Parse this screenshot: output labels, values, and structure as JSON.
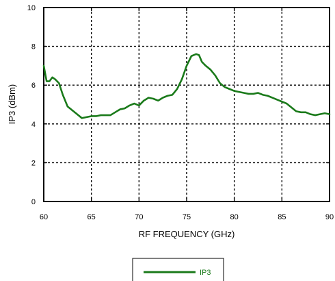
{
  "chart_data": {
    "type": "line",
    "xlabel": "RF FREQUENCY (GHz)",
    "ylabel": "IP3 (dBm)",
    "xlim": [
      60,
      90
    ],
    "ylim": [
      0,
      10
    ],
    "x_ticks": [
      "60",
      "65",
      "70",
      "75",
      "80",
      "85",
      "90"
    ],
    "y_ticks": [
      "0",
      "2",
      "4",
      "6",
      "8",
      "10"
    ],
    "grid": true,
    "legend_position": "bottom-center",
    "series": [
      {
        "name": "IP3",
        "color": "#1a7a1a",
        "x": [
          60.0,
          60.3,
          60.6,
          60.9,
          61.2,
          61.6,
          62.0,
          62.5,
          63.0,
          63.5,
          64.0,
          64.5,
          65.0,
          65.5,
          66.0,
          66.5,
          67.0,
          67.5,
          68.0,
          68.5,
          69.0,
          69.5,
          70.0,
          70.5,
          71.0,
          71.5,
          72.0,
          72.5,
          73.0,
          73.5,
          74.0,
          74.5,
          75.0,
          75.5,
          76.0,
          76.3,
          76.6,
          77.0,
          77.5,
          78.0,
          78.5,
          79.0,
          79.5,
          80.0,
          80.5,
          81.0,
          81.5,
          82.0,
          82.5,
          83.0,
          83.5,
          84.0,
          84.5,
          85.0,
          85.5,
          86.0,
          86.5,
          87.0,
          87.5,
          88.0,
          88.5,
          89.0,
          89.5,
          90.0
        ],
        "values": [
          7.0,
          6.2,
          6.2,
          6.4,
          6.3,
          6.1,
          5.5,
          4.9,
          4.7,
          4.5,
          4.3,
          4.35,
          4.4,
          4.4,
          4.45,
          4.45,
          4.45,
          4.6,
          4.75,
          4.8,
          4.95,
          5.05,
          4.95,
          5.2,
          5.35,
          5.3,
          5.2,
          5.35,
          5.45,
          5.5,
          5.8,
          6.3,
          7.0,
          7.5,
          7.6,
          7.55,
          7.2,
          7.0,
          6.8,
          6.5,
          6.1,
          5.9,
          5.8,
          5.7,
          5.65,
          5.6,
          5.55,
          5.55,
          5.6,
          5.5,
          5.45,
          5.35,
          5.25,
          5.15,
          5.05,
          4.85,
          4.65,
          4.6,
          4.6,
          4.5,
          4.45,
          4.5,
          4.55,
          4.5
        ]
      }
    ]
  }
}
